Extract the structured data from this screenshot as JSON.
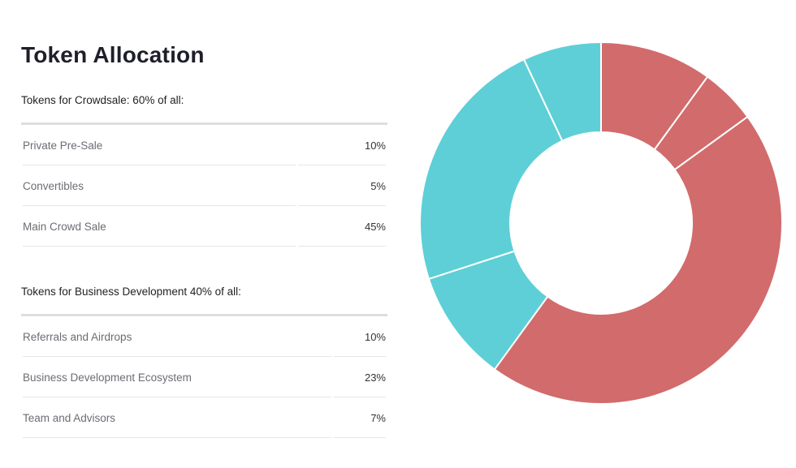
{
  "page": {
    "title": "Token Allocation"
  },
  "crowdsale": {
    "heading": "Tokens for Crowdsale: 60% of all:",
    "rows": [
      {
        "label": "Private Pre-Sale",
        "value": "10%"
      },
      {
        "label": "Convertibles",
        "value": "5%"
      },
      {
        "label": "Main Crowd Sale",
        "value": "45%"
      }
    ]
  },
  "business": {
    "heading": "Tokens for Business Development 40% of all:",
    "rows": [
      {
        "label": "Referrals and Airdrops",
        "value": "10%"
      },
      {
        "label": "Business Development Ecosystem",
        "value": "23%"
      },
      {
        "label": "Team and Advisors",
        "value": "7%"
      }
    ]
  },
  "chart_data": {
    "type": "pie",
    "categories": [
      "Private Pre-Sale",
      "Convertibles",
      "Main Crowd Sale",
      "Referrals and Airdrops",
      "Business Development Ecosystem",
      "Team and Advisors"
    ],
    "values": [
      10,
      5,
      45,
      10,
      23,
      7
    ],
    "colors": [
      "#d26b6c",
      "#d26b6c",
      "#d26b6c",
      "#5ecfd6",
      "#5ecfd6",
      "#5ecfd6"
    ],
    "donut": true,
    "legend": "none"
  }
}
